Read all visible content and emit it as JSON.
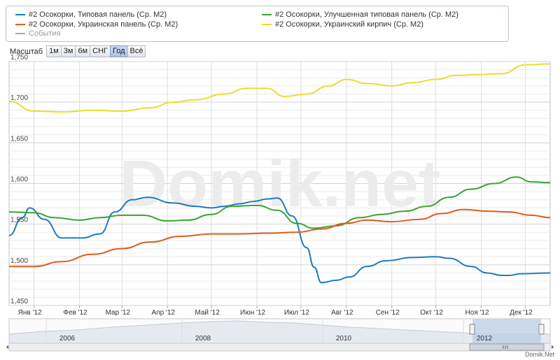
{
  "legend": {
    "items": [
      {
        "label": "#2 Осокорки, Типовая панель (Ср. М2)",
        "color": "#1f7bbf"
      },
      {
        "label": "#2 Осокорки, Улучшенная типовая панель (Ср. М2)",
        "color": "#3aa533"
      },
      {
        "label": "#2 Осокорки, Украинская панель (Ср. М2)",
        "color": "#e25a1c"
      },
      {
        "label": "#2 Осокорки, Украинский кирпич (Ср. М2)",
        "color": "#e6df2e"
      },
      {
        "label": "События",
        "color": "#aaaaaa"
      }
    ]
  },
  "zoom": {
    "label": "Масштаб",
    "buttons": [
      "1м",
      "3м",
      "6м",
      "СНГ",
      "Год",
      "Всё"
    ],
    "active": "Год"
  },
  "watermark": "Domik.net",
  "credit": "Domik.Net",
  "chart_data": {
    "type": "line",
    "x_axis": {
      "labels": [
        "Янв '12",
        "Фев '12",
        "Мар '12",
        "Апр '12",
        "Май '12",
        "Июн '12",
        "Июл '12",
        "Авг '12",
        "Сен '12",
        "Окт '12",
        "Ноя '12",
        "Дек '12"
      ]
    },
    "y_axis": {
      "ticks": [
        "1,450",
        "1,500",
        "1,550",
        "1,600",
        "1,650",
        "1,700",
        "1,750"
      ],
      "ylim": [
        1450,
        1750
      ],
      "grid": true
    },
    "x_domain": [
      "2011-12-15",
      "2012-12-18"
    ],
    "series": [
      {
        "name": "#2 Осокорки, Типовая панель (Ср. М2)",
        "color": "#1f7bbf",
        "x": [
          "2011-12-15",
          "2011-12-24",
          "2011-12-29",
          "2012-01-08",
          "2012-01-20",
          "2012-02-03",
          "2012-02-15",
          "2012-02-25",
          "2012-03-08",
          "2012-03-18",
          "2012-04-05",
          "2012-04-20",
          "2012-05-01",
          "2012-05-10",
          "2012-05-20",
          "2012-05-30",
          "2012-06-08",
          "2012-06-15",
          "2012-06-25",
          "2012-07-05",
          "2012-07-10",
          "2012-07-15",
          "2012-07-25",
          "2012-08-03",
          "2012-08-15",
          "2012-08-28",
          "2012-09-15",
          "2012-10-01",
          "2012-10-10",
          "2012-10-25",
          "2012-11-05",
          "2012-11-15",
          "2012-11-20",
          "2012-11-28",
          "2012-12-18"
        ],
        "y": [
          1536,
          1558,
          1570,
          1556,
          1533,
          1533,
          1538,
          1565,
          1580,
          1583,
          1576,
          1572,
          1570,
          1572,
          1575,
          1578,
          1581,
          1582,
          1560,
          1521,
          1497,
          1478,
          1481,
          1485,
          1498,
          1505,
          1509,
          1510,
          1508,
          1498,
          1490,
          1487,
          1487,
          1489,
          1490
        ]
      },
      {
        "name": "#2 Осокорки, Улучшенная типовая панель (Ср. М2)",
        "color": "#3aa533",
        "x": [
          "2011-12-15",
          "2012-01-01",
          "2012-01-15",
          "2012-02-01",
          "2012-02-15",
          "2012-03-01",
          "2012-03-15",
          "2012-04-01",
          "2012-04-15",
          "2012-05-01",
          "2012-05-15",
          "2012-06-01",
          "2012-06-15",
          "2012-06-28",
          "2012-07-10",
          "2012-07-25",
          "2012-08-10",
          "2012-08-25",
          "2012-09-10",
          "2012-09-25",
          "2012-10-10",
          "2012-10-25",
          "2012-11-10",
          "2012-11-25",
          "2012-12-05",
          "2012-12-18"
        ],
        "y": [
          1565,
          1564,
          1558,
          1555,
          1558,
          1561,
          1561,
          1554,
          1555,
          1562,
          1572,
          1573,
          1567,
          1551,
          1545,
          1548,
          1558,
          1562,
          1566,
          1572,
          1583,
          1593,
          1600,
          1608,
          1602,
          1601
        ]
      },
      {
        "name": "#2 Осокорки, Украинская панель (Ср. М2)",
        "color": "#e25a1c",
        "x": [
          "2011-12-15",
          "2012-01-01",
          "2012-01-20",
          "2012-02-10",
          "2012-03-01",
          "2012-03-20",
          "2012-04-10",
          "2012-05-01",
          "2012-05-20",
          "2012-06-10",
          "2012-06-28",
          "2012-07-15",
          "2012-08-01",
          "2012-08-15",
          "2012-09-01",
          "2012-09-20",
          "2012-10-05",
          "2012-10-20",
          "2012-11-05",
          "2012-11-20",
          "2012-12-05",
          "2012-12-18"
        ],
        "y": [
          1498,
          1498,
          1504,
          1513,
          1520,
          1528,
          1535,
          1538,
          1538,
          1539,
          1540,
          1544,
          1551,
          1555,
          1553,
          1556,
          1563,
          1568,
          1566,
          1565,
          1561,
          1558
        ]
      },
      {
        "name": "#2 Осокорки, Украинский кирпич (Ср. М2)",
        "color": "#e6df2e",
        "x": [
          "2011-12-15",
          "2012-01-01",
          "2012-01-20",
          "2012-02-10",
          "2012-03-01",
          "2012-03-20",
          "2012-04-05",
          "2012-04-20",
          "2012-05-10",
          "2012-05-25",
          "2012-06-08",
          "2012-06-20",
          "2012-07-05",
          "2012-07-20",
          "2012-08-01",
          "2012-08-15",
          "2012-09-01",
          "2012-09-15",
          "2012-10-01",
          "2012-10-15",
          "2012-11-01",
          "2012-11-15",
          "2012-12-01",
          "2012-12-18"
        ],
        "y": [
          1701,
          1689,
          1688,
          1690,
          1689,
          1693,
          1700,
          1703,
          1710,
          1717,
          1717,
          1707,
          1710,
          1720,
          1728,
          1723,
          1720,
          1724,
          1728,
          1733,
          1734,
          1735,
          1746,
          1747
        ]
      }
    ],
    "navigator": {
      "labels": [
        "2006",
        "2008",
        "2010",
        "2012"
      ]
    }
  }
}
